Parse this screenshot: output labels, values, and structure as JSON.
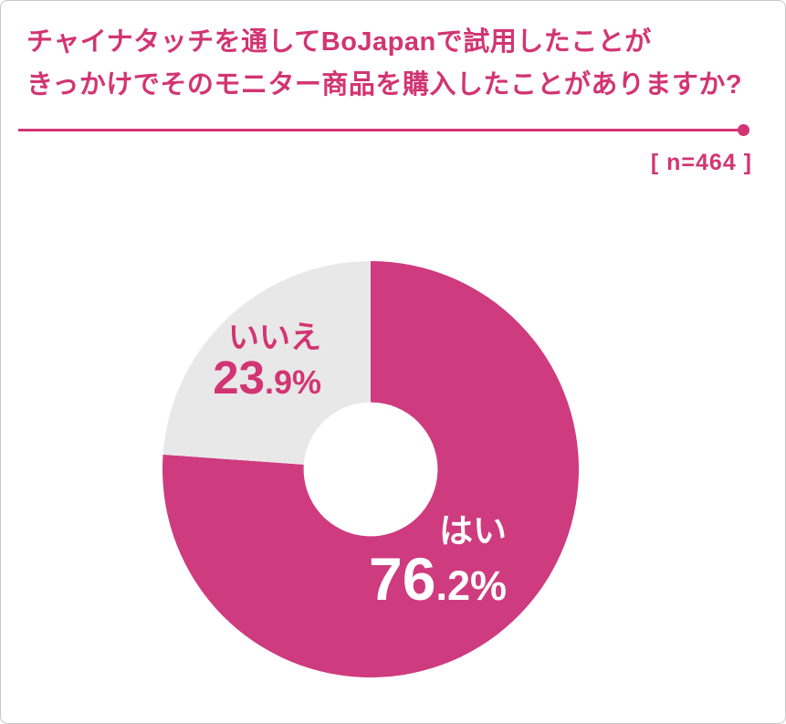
{
  "header": {
    "title_lines": [
      "チャイナタッチを通してBoJapanで試用したことが",
      "きっかけでそのモニター商品を購入したことがありますか?"
    ],
    "sample_label": "[ n=464 ]"
  },
  "colors": {
    "accent_pink": "#d23573",
    "slice_pink": "#ce3b7e",
    "slice_gray": "#e9e8e8",
    "yes_label_text": "#ffffff",
    "frame_border": "#c7c7c7"
  },
  "chart_data": {
    "type": "pie",
    "donut": true,
    "title": "チャイナタッチを通してBoJapanで試用したことがきっかけでそのモニター商品を購入したことがありますか?",
    "sample_n": 464,
    "start_angle_deg": 0,
    "direction": "clockwise",
    "inner_radius_ratio": 0.322,
    "legend_position": "on-slice",
    "slices": [
      {
        "label": "はい",
        "value": 76.2,
        "display_int": "76",
        "display_frac": ".2%",
        "color": "#ce3b7e",
        "label_color": "#ffffff"
      },
      {
        "label": "いいえ",
        "value": 23.9,
        "display_int": "23",
        "display_frac": ".9%",
        "color": "#e9e8e8",
        "label_color": "#d23573"
      }
    ]
  }
}
